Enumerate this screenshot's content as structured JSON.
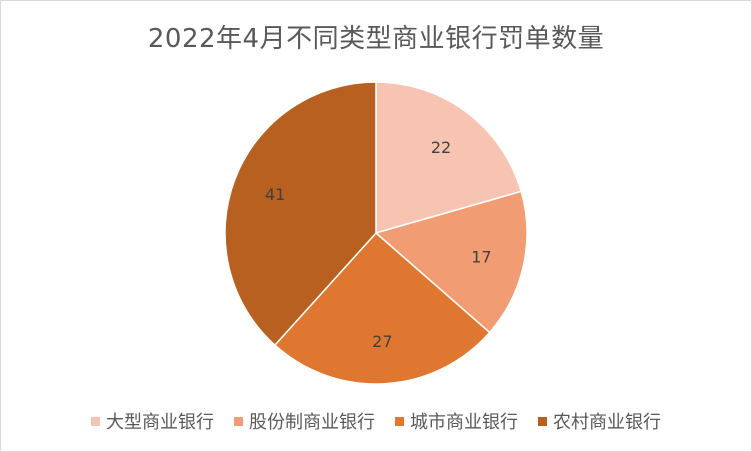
{
  "chart_data": {
    "type": "pie",
    "title": "2022年4月不同类型商业银行罚单数量",
    "categories": [
      "大型商业银行",
      "股份制商业银行",
      "城市商业银行",
      "农村商业银行"
    ],
    "values": [
      22,
      17,
      27,
      41
    ],
    "colors": [
      "#f6c4b1",
      "#f19c72",
      "#e07731",
      "#b8601f"
    ],
    "legend_position": "bottom",
    "start_angle": "12 o'clock",
    "direction": "clockwise",
    "data_labels": true
  }
}
